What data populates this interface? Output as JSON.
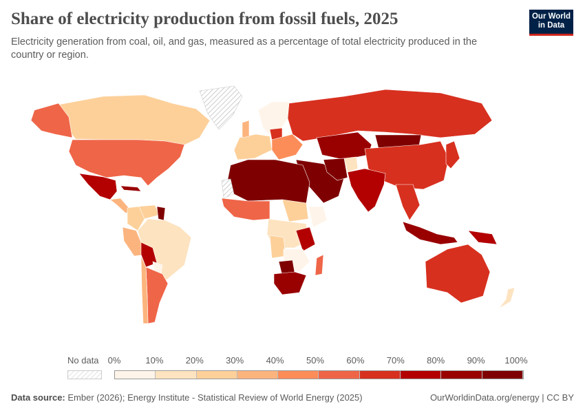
{
  "header": {
    "title": "Share of electricity production from fossil fuels, 2025",
    "subtitle": "Electricity generation from coal, oil, and gas, measured as a percentage of total electricity produced in the country or region.",
    "logo_text": "Our World in Data"
  },
  "legend": {
    "no_data_label": "No data",
    "ticks": [
      "0%",
      "10%",
      "20%",
      "30%",
      "40%",
      "50%",
      "60%",
      "70%",
      "80%",
      "90%",
      "100%"
    ],
    "colors": [
      "#fef4e9",
      "#fde3c0",
      "#fdd09a",
      "#fcb47e",
      "#fc8d59",
      "#ef6548",
      "#d7301f",
      "#b30000",
      "#990000",
      "#7f0000"
    ]
  },
  "map_regions": [
    {
      "name": "Canada",
      "value": 25
    },
    {
      "name": "Alaska",
      "value": 55
    },
    {
      "name": "United States",
      "value": 58
    },
    {
      "name": "Greenland",
      "value": null
    },
    {
      "name": "Mexico",
      "value": 75
    },
    {
      "name": "Central America",
      "value": 35
    },
    {
      "name": "Cuba",
      "value": 85
    },
    {
      "name": "Venezuela",
      "value": 25
    },
    {
      "name": "Colombia",
      "value": 25
    },
    {
      "name": "Guyana",
      "value": 95
    },
    {
      "name": "Brazil",
      "value": 12
    },
    {
      "name": "Peru",
      "value": 35
    },
    {
      "name": "Bolivia",
      "value": 75
    },
    {
      "name": "Paraguay",
      "value": 0
    },
    {
      "name": "Argentina",
      "value": 50
    },
    {
      "name": "Chile",
      "value": 35
    },
    {
      "name": "Scandinavia",
      "value": 5
    },
    {
      "name": "Western Europe",
      "value": 20
    },
    {
      "name": "United Kingdom",
      "value": 35
    },
    {
      "name": "Poland",
      "value": 65
    },
    {
      "name": "Eastern Europe",
      "value": 45
    },
    {
      "name": "Russia",
      "value": 62
    },
    {
      "name": "Kazakhstan",
      "value": 85
    },
    {
      "name": "Mongolia",
      "value": 92
    },
    {
      "name": "China",
      "value": 62
    },
    {
      "name": "Middle East",
      "value": 95
    },
    {
      "name": "Iran",
      "value": 90
    },
    {
      "name": "Afghanistan",
      "value": 15
    },
    {
      "name": "India",
      "value": 72
    },
    {
      "name": "Southeast Asia",
      "value": 62
    },
    {
      "name": "Japan",
      "value": 65
    },
    {
      "name": "North Africa",
      "value": 95
    },
    {
      "name": "Western Sahara",
      "value": null
    },
    {
      "name": "West Africa",
      "value": 55
    },
    {
      "name": "Sudan",
      "value": 25
    },
    {
      "name": "Ethiopia",
      "value": 5
    },
    {
      "name": "Central Africa",
      "value": 12
    },
    {
      "name": "Tanzania",
      "value": 70
    },
    {
      "name": "Angola",
      "value": 25
    },
    {
      "name": "Southern Africa",
      "value": 5
    },
    {
      "name": "Botswana",
      "value": 95
    },
    {
      "name": "South Africa",
      "value": 82
    },
    {
      "name": "Madagascar",
      "value": 55
    },
    {
      "name": "Indonesia",
      "value": 80
    },
    {
      "name": "Papua New Guinea",
      "value": 75
    },
    {
      "name": "Australia",
      "value": 65
    },
    {
      "name": "New Zealand",
      "value": 15
    }
  ],
  "footer": {
    "source_label": "Data source:",
    "source_text": "Ember (2026); Energy Institute - Statistical Review of World Energy (2025)",
    "credit": "OurWorldinData.org/energy | CC BY"
  }
}
